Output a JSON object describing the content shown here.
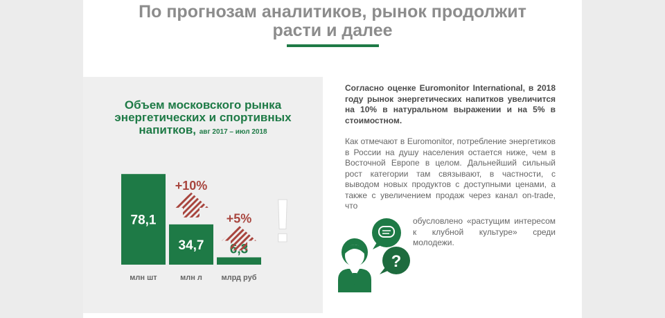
{
  "header": {
    "title_line1": "По прогнозам аналитиков, рынок продолжит",
    "title_line2": "расти и далее"
  },
  "colors": {
    "accent_green": "#1e7a46",
    "growth_red": "#a8453e",
    "title_gray": "#8c8c8c",
    "panel_gray": "#efefef"
  },
  "chart_data": {
    "type": "bar",
    "title_lines": [
      "Объем московского рынка",
      "энергетических и спортивных",
      "напитков,"
    ],
    "subtitle": "авг 2017 – июл 2018",
    "categories": [
      "млн шт",
      "млн л",
      "млрд руб"
    ],
    "values": [
      78.1,
      34.7,
      6.3
    ],
    "value_labels": [
      "78,1",
      "34,7",
      "6,3"
    ],
    "growth_labels": [
      "",
      "+10%",
      "+5%"
    ],
    "ylim": [
      0,
      80
    ],
    "grid": false,
    "legend": "none"
  },
  "text": {
    "para1": "Согласно оценке Euromonitor International, в 2018 году рынок энергетических напитков увеличится на 10% в натуральном выражении и на 5% в стоимостном.",
    "para2": "Как отмечают в Euromonitor, потребление энергетиков в России на душу населения остается ниже, чем в Восточной Европе в целом. Дальнейший сильный рост категории там связывают, в частности, с выводом новых продуктов с доступными ценами, а также с увеличением продаж через канал on-trade, что",
    "para3": "обусловлено «растущим интересом к клубной культуре» среди молодежи."
  },
  "icons": {
    "exclamation": "!",
    "question": "?",
    "speech": "speech-bubble-icon",
    "person": "person-icon"
  }
}
